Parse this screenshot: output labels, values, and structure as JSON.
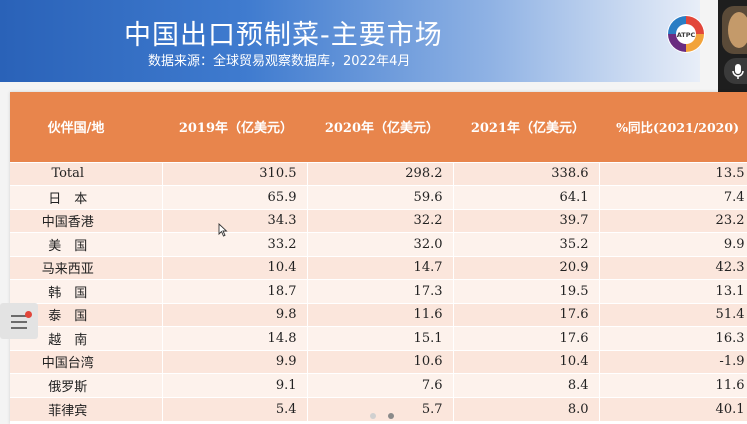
{
  "header": {
    "title": "中国出口预制菜-主要市场",
    "subtitle": "数据来源：全球贸易观察数据库，2022年4月",
    "logo_text": "ATPC",
    "gradient_start": "#2a62b8",
    "gradient_end": "#e8eef8"
  },
  "table": {
    "header_color": "#e8854c",
    "columns": [
      "伙伴国/地",
      "2019年（亿美元）",
      "2020年（亿美元）",
      "2021年（亿美元）",
      "%同比(2021/2020)"
    ],
    "rows": [
      {
        "name": "Total",
        "y2019": "310.5",
        "y2020": "298.2",
        "y2021": "338.6",
        "yoy": "13.5"
      },
      {
        "name": "日　本",
        "y2019": "65.9",
        "y2020": "59.6",
        "y2021": "64.1",
        "yoy": "7.4"
      },
      {
        "name": "中国香港",
        "y2019": "34.3",
        "y2020": "32.2",
        "y2021": "39.7",
        "yoy": "23.2"
      },
      {
        "name": "美　国",
        "y2019": "33.2",
        "y2020": "32.0",
        "y2021": "35.2",
        "yoy": "9.9"
      },
      {
        "name": "马来西亚",
        "y2019": "10.4",
        "y2020": "14.7",
        "y2021": "20.9",
        "yoy": "42.3"
      },
      {
        "name": "韩　国",
        "y2019": "18.7",
        "y2020": "17.3",
        "y2021": "19.5",
        "yoy": "13.1"
      },
      {
        "name": "泰　国",
        "y2019": "9.8",
        "y2020": "11.6",
        "y2021": "17.6",
        "yoy": "51.4"
      },
      {
        "name": "越　南",
        "y2019": "14.8",
        "y2020": "15.1",
        "y2021": "17.6",
        "yoy": "16.3"
      },
      {
        "name": "中国台湾",
        "y2019": "9.9",
        "y2020": "10.6",
        "y2021": "10.4",
        "yoy": "-1.9"
      },
      {
        "name": "俄罗斯",
        "y2019": "9.1",
        "y2020": "7.6",
        "y2021": "8.4",
        "yoy": "11.6"
      },
      {
        "name": "菲律宾",
        "y2019": "5.4",
        "y2020": "5.7",
        "y2021": "8.0",
        "yoy": "40.1"
      }
    ]
  },
  "icons": {
    "side_button": "list-menu-icon",
    "mic": "microphone-icon",
    "cursor": "mouse-cursor-icon"
  }
}
